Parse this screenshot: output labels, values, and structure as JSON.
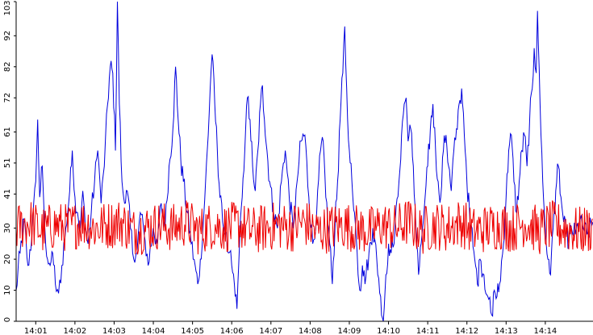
{
  "chart_data": {
    "type": "line",
    "title": "",
    "xlabel": "",
    "ylabel": "",
    "ylim": [
      0,
      103
    ],
    "y_ticks": [
      0,
      10,
      20,
      30,
      41,
      51,
      61,
      72,
      82,
      92,
      103
    ],
    "x_ticks": [
      "14:01",
      "14:02",
      "14:03",
      "14:04",
      "14:05",
      "14:06",
      "14:07",
      "14:08",
      "14:09",
      "14:10",
      "14:11",
      "14:12",
      "14:13",
      "14:14"
    ],
    "x_range": [
      "14:00:30",
      "14:15:13"
    ],
    "grid": false,
    "legend": "none",
    "series": [
      {
        "color": "#0000dd",
        "points": [
          [
            "14:00:30",
            10
          ],
          [
            "14:00:36",
            22
          ],
          [
            "14:00:42",
            33
          ],
          [
            "14:00:48",
            18
          ],
          [
            "14:00:54",
            27
          ],
          [
            "14:01:00",
            45
          ],
          [
            "14:01:03",
            65
          ],
          [
            "14:01:06",
            40
          ],
          [
            "14:01:10",
            50
          ],
          [
            "14:01:14",
            30
          ],
          [
            "14:01:18",
            20
          ],
          [
            "14:01:22",
            18
          ],
          [
            "14:01:26",
            22
          ],
          [
            "14:01:30",
            12
          ],
          [
            "14:01:35",
            9
          ],
          [
            "14:01:40",
            18
          ],
          [
            "14:01:46",
            30
          ],
          [
            "14:01:52",
            42
          ],
          [
            "14:01:56",
            55
          ],
          [
            "14:02:00",
            40
          ],
          [
            "14:02:04",
            35
          ],
          [
            "14:02:08",
            30
          ],
          [
            "14:02:12",
            42
          ],
          [
            "14:02:16",
            30
          ],
          [
            "14:02:20",
            25
          ],
          [
            "14:02:25",
            35
          ],
          [
            "14:02:30",
            45
          ],
          [
            "14:02:35",
            55
          ],
          [
            "14:02:40",
            38
          ],
          [
            "14:02:45",
            50
          ],
          [
            "14:02:50",
            70
          ],
          [
            "14:02:54",
            82
          ],
          [
            "14:02:58",
            80
          ],
          [
            "14:03:02",
            55
          ],
          [
            "14:03:05",
            103
          ],
          [
            "14:03:08",
            70
          ],
          [
            "14:03:12",
            45
          ],
          [
            "14:03:16",
            38
          ],
          [
            "14:03:20",
            42
          ],
          [
            "14:03:25",
            30
          ],
          [
            "14:03:30",
            20
          ],
          [
            "14:03:35",
            22
          ],
          [
            "14:03:40",
            35
          ],
          [
            "14:03:46",
            28
          ],
          [
            "14:03:52",
            18
          ],
          [
            "14:04:00",
            30
          ],
          [
            "14:04:06",
            25
          ],
          [
            "14:04:12",
            38
          ],
          [
            "14:04:18",
            30
          ],
          [
            "14:04:24",
            50
          ],
          [
            "14:04:30",
            62
          ],
          [
            "14:04:34",
            82
          ],
          [
            "14:04:38",
            65
          ],
          [
            "14:04:42",
            52
          ],
          [
            "14:04:46",
            45
          ],
          [
            "14:04:52",
            35
          ],
          [
            "14:04:58",
            25
          ],
          [
            "14:05:04",
            18
          ],
          [
            "14:05:08",
            12
          ],
          [
            "14:05:12",
            20
          ],
          [
            "14:05:16",
            30
          ],
          [
            "14:05:20",
            45
          ],
          [
            "14:05:24",
            60
          ],
          [
            "14:05:27",
            75
          ],
          [
            "14:05:30",
            86
          ],
          [
            "14:05:34",
            70
          ],
          [
            "14:05:38",
            55
          ],
          [
            "14:05:42",
            40
          ],
          [
            "14:05:46",
            32
          ],
          [
            "14:05:50",
            28
          ],
          [
            "14:05:55",
            22
          ],
          [
            "14:06:00",
            18
          ],
          [
            "14:06:04",
            12
          ],
          [
            "14:06:08",
            4
          ],
          [
            "14:06:12",
            25
          ],
          [
            "14:06:16",
            40
          ],
          [
            "14:06:20",
            55
          ],
          [
            "14:06:24",
            72
          ],
          [
            "14:06:28",
            65
          ],
          [
            "14:06:32",
            50
          ],
          [
            "14:06:36",
            42
          ],
          [
            "14:06:40",
            55
          ],
          [
            "14:06:44",
            70
          ],
          [
            "14:06:47",
            76
          ],
          [
            "14:06:50",
            65
          ],
          [
            "14:06:54",
            55
          ],
          [
            "14:06:58",
            45
          ],
          [
            "14:07:04",
            35
          ],
          [
            "14:07:10",
            30
          ],
          [
            "14:07:16",
            45
          ],
          [
            "14:07:22",
            55
          ],
          [
            "14:07:28",
            40
          ],
          [
            "14:07:34",
            30
          ],
          [
            "14:07:40",
            45
          ],
          [
            "14:07:46",
            58
          ],
          [
            "14:07:52",
            60
          ],
          [
            "14:07:58",
            40
          ],
          [
            "14:08:04",
            25
          ],
          [
            "14:08:10",
            35
          ],
          [
            "14:08:16",
            55
          ],
          [
            "14:08:20",
            58
          ],
          [
            "14:08:24",
            40
          ],
          [
            "14:08:30",
            25
          ],
          [
            "14:08:34",
            12
          ],
          [
            "14:08:38",
            30
          ],
          [
            "14:08:42",
            45
          ],
          [
            "14:08:46",
            65
          ],
          [
            "14:08:50",
            80
          ],
          [
            "14:08:53",
            95
          ],
          [
            "14:08:56",
            75
          ],
          [
            "14:09:00",
            55
          ],
          [
            "14:09:04",
            45
          ],
          [
            "14:09:08",
            35
          ],
          [
            "14:09:12",
            22
          ],
          [
            "14:09:16",
            10
          ],
          [
            "14:09:20",
            18
          ],
          [
            "14:09:24",
            12
          ],
          [
            "14:09:30",
            22
          ],
          [
            "14:09:36",
            30
          ],
          [
            "14:09:42",
            20
          ],
          [
            "14:09:48",
            8
          ],
          [
            "14:09:52",
            0
          ],
          [
            "14:09:56",
            15
          ],
          [
            "14:10:00",
            25
          ],
          [
            "14:10:04",
            22
          ],
          [
            "14:10:10",
            30
          ],
          [
            "14:10:16",
            45
          ],
          [
            "14:10:20",
            60
          ],
          [
            "14:10:24",
            70
          ],
          [
            "14:10:27",
            72
          ],
          [
            "14:10:30",
            58
          ],
          [
            "14:10:34",
            62
          ],
          [
            "14:10:38",
            50
          ],
          [
            "14:10:42",
            30
          ],
          [
            "14:10:46",
            15
          ],
          [
            "14:10:50",
            25
          ],
          [
            "14:10:56",
            40
          ],
          [
            "14:11:00",
            50
          ],
          [
            "14:11:04",
            62
          ],
          [
            "14:11:08",
            70
          ],
          [
            "14:11:12",
            55
          ],
          [
            "14:11:16",
            45
          ],
          [
            "14:11:20",
            40
          ],
          [
            "14:11:24",
            55
          ],
          [
            "14:11:28",
            60
          ],
          [
            "14:11:32",
            50
          ],
          [
            "14:11:36",
            42
          ],
          [
            "14:11:40",
            55
          ],
          [
            "14:11:44",
            62
          ],
          [
            "14:11:48",
            70
          ],
          [
            "14:11:52",
            75
          ],
          [
            "14:11:56",
            60
          ],
          [
            "14:12:00",
            45
          ],
          [
            "14:12:04",
            35
          ],
          [
            "14:12:08",
            30
          ],
          [
            "14:12:12",
            20
          ],
          [
            "14:12:16",
            12
          ],
          [
            "14:12:20",
            20
          ],
          [
            "14:12:26",
            15
          ],
          [
            "14:12:32",
            8
          ],
          [
            "14:12:38",
            2
          ],
          [
            "14:12:42",
            10
          ],
          [
            "14:12:46",
            8
          ],
          [
            "14:12:50",
            12
          ],
          [
            "14:12:56",
            25
          ],
          [
            "14:13:00",
            40
          ],
          [
            "14:13:04",
            55
          ],
          [
            "14:13:08",
            60
          ],
          [
            "14:13:12",
            45
          ],
          [
            "14:13:16",
            35
          ],
          [
            "14:13:20",
            45
          ],
          [
            "14:13:24",
            55
          ],
          [
            "14:13:28",
            60
          ],
          [
            "14:13:32",
            50
          ],
          [
            "14:13:36",
            65
          ],
          [
            "14:13:40",
            75
          ],
          [
            "14:13:43",
            88
          ],
          [
            "14:13:46",
            80
          ],
          [
            "14:13:48",
            100
          ],
          [
            "14:13:52",
            70
          ],
          [
            "14:13:56",
            45
          ],
          [
            "14:14:00",
            30
          ],
          [
            "14:14:04",
            20
          ],
          [
            "14:14:08",
            15
          ],
          [
            "14:14:12",
            30
          ],
          [
            "14:14:16",
            42
          ],
          [
            "14:14:20",
            50
          ],
          [
            "14:14:24",
            40
          ],
          [
            "14:14:28",
            32
          ],
          [
            "14:14:32",
            28
          ],
          [
            "14:14:36",
            25
          ],
          [
            "14:14:40",
            30
          ],
          [
            "14:14:46",
            28
          ],
          [
            "14:14:52",
            32
          ],
          [
            "14:14:58",
            30
          ],
          [
            "14:15:04",
            28
          ],
          [
            "14:15:13",
            32
          ]
        ]
      },
      {
        "color": "#ee0000",
        "points": [
          [
            "14:00:30",
            30
          ],
          [
            "14:00:50",
            32
          ],
          [
            "14:01:10",
            29
          ],
          [
            "14:01:30",
            31
          ],
          [
            "14:01:50",
            30
          ],
          [
            "14:02:10",
            32
          ],
          [
            "14:02:30",
            30
          ],
          [
            "14:02:50",
            31
          ],
          [
            "14:03:10",
            32
          ],
          [
            "14:03:30",
            29
          ],
          [
            "14:03:50",
            30
          ],
          [
            "14:04:10",
            31
          ],
          [
            "14:04:30",
            30
          ],
          [
            "14:04:50",
            32
          ],
          [
            "14:05:10",
            29
          ],
          [
            "14:05:30",
            31
          ],
          [
            "14:05:50",
            30
          ],
          [
            "14:06:10",
            31
          ],
          [
            "14:06:30",
            29
          ],
          [
            "14:06:50",
            30
          ],
          [
            "14:07:10",
            31
          ],
          [
            "14:07:30",
            30
          ],
          [
            "14:07:50",
            32
          ],
          [
            "14:08:10",
            29
          ],
          [
            "14:08:30",
            30
          ],
          [
            "14:08:50",
            31
          ],
          [
            "14:09:10",
            30
          ],
          [
            "14:09:30",
            29
          ],
          [
            "14:09:50",
            31
          ],
          [
            "14:10:10",
            30
          ],
          [
            "14:10:30",
            32
          ],
          [
            "14:10:50",
            29
          ],
          [
            "14:11:10",
            31
          ],
          [
            "14:11:30",
            30
          ],
          [
            "14:11:50",
            32
          ],
          [
            "14:12:10",
            29
          ],
          [
            "14:12:30",
            30
          ],
          [
            "14:12:50",
            31
          ],
          [
            "14:13:10",
            30
          ],
          [
            "14:13:30",
            32
          ],
          [
            "14:13:50",
            29
          ],
          [
            "14:14:10",
            31
          ],
          [
            "14:14:30",
            30
          ],
          [
            "14:14:50",
            29
          ],
          [
            "14:15:13",
            30
          ]
        ],
        "noise_amplitude": 8
      }
    ]
  }
}
